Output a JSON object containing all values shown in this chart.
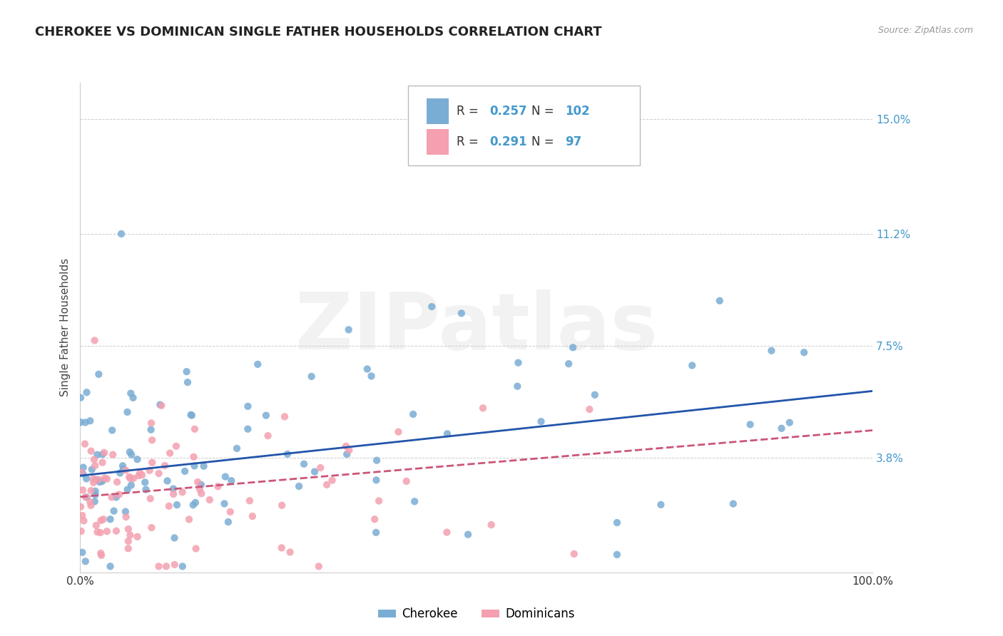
{
  "title": "CHEROKEE VS DOMINICAN SINGLE FATHER HOUSEHOLDS CORRELATION CHART",
  "source": "Source: ZipAtlas.com",
  "ylabel": "Single Father Households",
  "xlim": [
    0,
    100
  ],
  "ylim": [
    0.0,
    0.162
  ],
  "yticks": [
    0.038,
    0.075,
    0.112,
    0.15
  ],
  "ytick_labels": [
    "3.8%",
    "7.5%",
    "11.2%",
    "15.0%"
  ],
  "xtick_labels": [
    "0.0%",
    "100.0%"
  ],
  "cherokee_color": "#7aadd4",
  "dominican_color": "#f4a0b0",
  "cherokee_line_color": "#2255aa",
  "dominican_line_color": "#cc5577",
  "cherokee_R": 0.257,
  "cherokee_N": 102,
  "dominican_R": 0.291,
  "dominican_N": 97,
  "watermark": "ZIPatlas",
  "background_color": "#ffffff",
  "grid_color": "#cccccc",
  "title_fontsize": 13,
  "axis_label_fontsize": 11,
  "tick_fontsize": 11,
  "legend_label_cherokee": "Cherokee",
  "legend_label_dominican": "Dominicans",
  "cherokee_intercept": 0.032,
  "cherokee_slope": 0.00028,
  "dominican_intercept": 0.025,
  "dominican_slope": 0.00022
}
